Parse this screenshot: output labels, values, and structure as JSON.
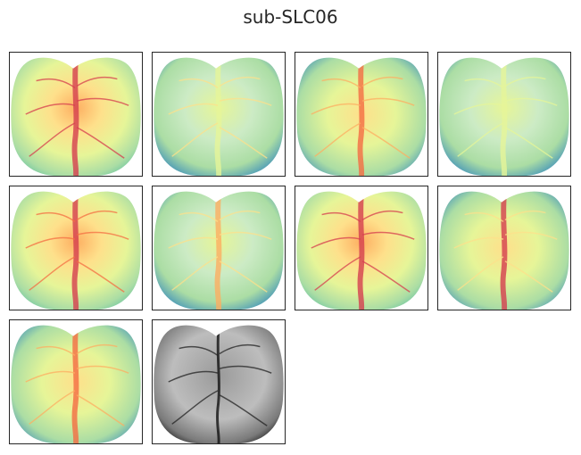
{
  "figure": {
    "title": "sub-SLC06"
  },
  "panels": [
    {
      "id": 1,
      "colormap": "spectral",
      "content": "brain-map"
    },
    {
      "id": 2,
      "colormap": "spectral",
      "content": "brain-map"
    },
    {
      "id": 3,
      "colormap": "spectral",
      "content": "brain-map"
    },
    {
      "id": 4,
      "colormap": "spectral",
      "content": "brain-map"
    },
    {
      "id": 5,
      "colormap": "spectral",
      "content": "brain-map"
    },
    {
      "id": 6,
      "colormap": "spectral",
      "content": "brain-map"
    },
    {
      "id": 7,
      "colormap": "spectral",
      "content": "brain-map"
    },
    {
      "id": 8,
      "colormap": "spectral",
      "content": "brain-map"
    },
    {
      "id": 9,
      "colormap": "spectral",
      "content": "brain-map"
    },
    {
      "id": 10,
      "colormap": "gray",
      "content": "reference-image"
    }
  ],
  "colors": {
    "frame": "#262626",
    "spectral_low": "#3288bd",
    "spectral_mid": "#ffffbf",
    "spectral_high": "#d53e4f"
  }
}
